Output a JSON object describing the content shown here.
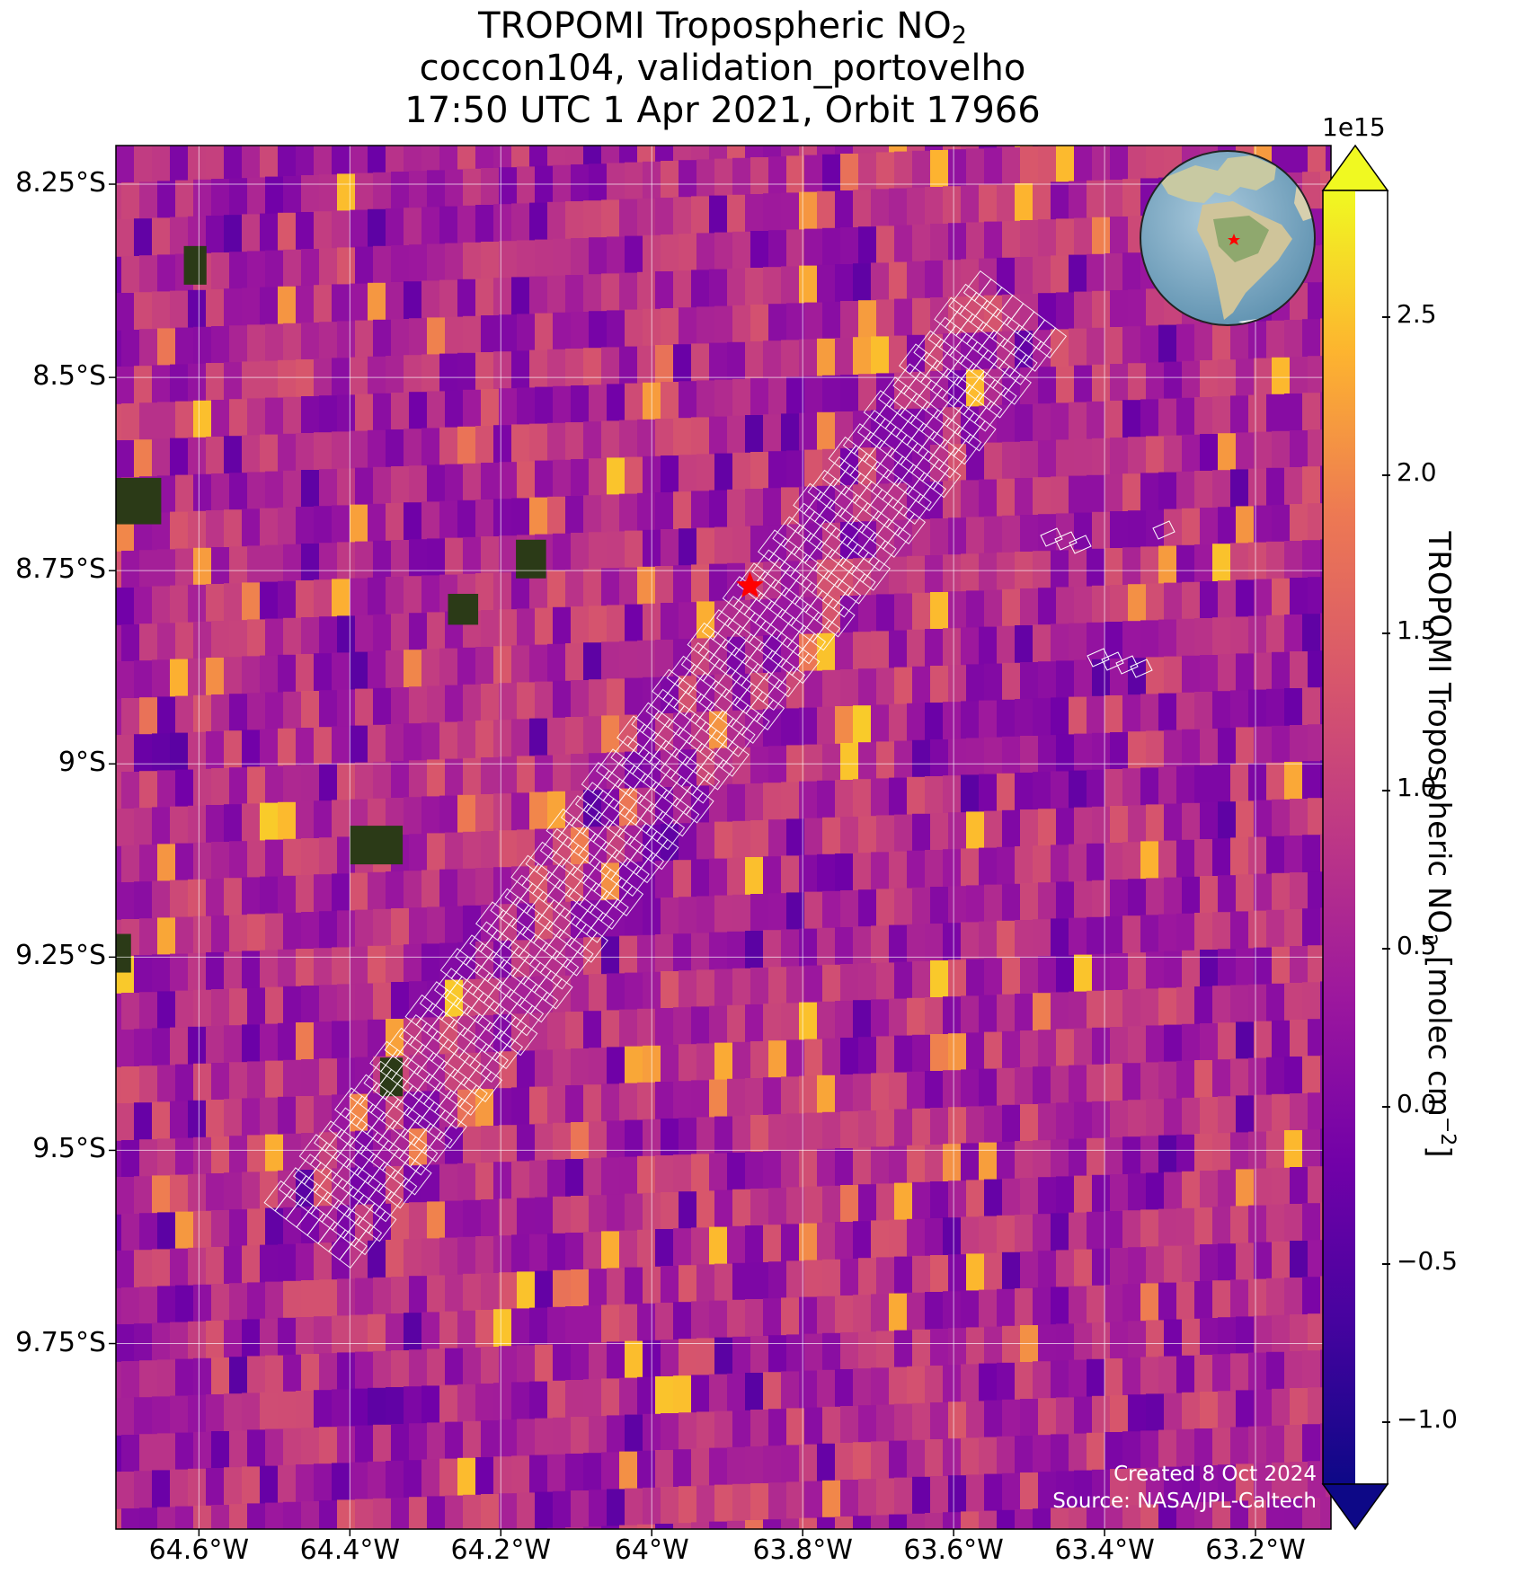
{
  "title": {
    "line1_prefix": "TROPOMI Tropospheric NO",
    "line1_subscript": "2",
    "line2": "coccon104, validation_portovelho",
    "line3": "17:50 UTC 1 Apr 2021, Orbit 17966"
  },
  "map": {
    "lon_range": [
      -64.71,
      -63.1
    ],
    "lat_range": [
      -9.99,
      -8.2
    ],
    "lon_ticks": [
      {
        "value": -64.6,
        "label": "64.6°W"
      },
      {
        "value": -64.4,
        "label": "64.4°W"
      },
      {
        "value": -64.2,
        "label": "64.2°W"
      },
      {
        "value": -64.0,
        "label": "64°W"
      },
      {
        "value": -63.8,
        "label": "63.8°W"
      },
      {
        "value": -63.6,
        "label": "63.6°W"
      },
      {
        "value": -63.4,
        "label": "63.4°W"
      },
      {
        "value": -63.2,
        "label": "63.2°W"
      }
    ],
    "lat_ticks": [
      {
        "value": -8.25,
        "label": "8.25°S"
      },
      {
        "value": -8.5,
        "label": "8.5°S"
      },
      {
        "value": -8.75,
        "label": "8.75°S"
      },
      {
        "value": -9.0,
        "label": "9°S"
      },
      {
        "value": -9.25,
        "label": "9.25°S"
      },
      {
        "value": -9.5,
        "label": "9.5°S"
      },
      {
        "value": -9.75,
        "label": "9.75°S"
      }
    ],
    "site_marker": {
      "lon": -63.87,
      "lat": -8.77,
      "color": "#ff0000"
    },
    "colormap": "plasma",
    "grid_lines": true,
    "field_value_range": [
      -1200000000000000.0,
      2900000000000000.0
    ],
    "swath_outline_color": "#ffffff"
  },
  "colorbar": {
    "offset_label": "1e15",
    "label_prefix": "TROPOMI Tropospheric NO",
    "label_subscript": "2",
    "label_units_prefix": " [molec cm",
    "label_units_superscript": "−2",
    "label_units_suffix": "]",
    "range": [
      -1.2,
      2.9
    ],
    "extend": "both",
    "ticks": [
      {
        "value": -1.0,
        "label": "−1.0"
      },
      {
        "value": -0.5,
        "label": "−0.5"
      },
      {
        "value": 0.0,
        "label": "0.0"
      },
      {
        "value": 0.5,
        "label": "0.5"
      },
      {
        "value": 1.0,
        "label": "1.0"
      },
      {
        "value": 1.5,
        "label": "1.5"
      },
      {
        "value": 2.0,
        "label": "2.0"
      },
      {
        "value": 2.5,
        "label": "2.5"
      }
    ]
  },
  "inset": {
    "type": "globe",
    "marker_color": "#ff0000"
  },
  "credits": {
    "created": "Created 8 Oct 2024",
    "source": "Source: NASA/JPL-Caltech"
  }
}
